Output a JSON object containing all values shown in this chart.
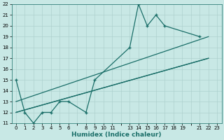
{
  "xlabel": "Humidex (Indice chaleur)",
  "bg_color": "#c8e8e5",
  "grid_color": "#a8ccca",
  "line_color": "#1a6e68",
  "spine_color": "#1a6e68",
  "xlim": [
    -0.5,
    23.5
  ],
  "ylim": [
    11,
    22
  ],
  "yticks": [
    11,
    12,
    13,
    14,
    15,
    16,
    17,
    18,
    19,
    20,
    21,
    22
  ],
  "xtick_vals": [
    0,
    1,
    2,
    3,
    4,
    5,
    6,
    8,
    9,
    10,
    11,
    13,
    14,
    15,
    16,
    17,
    18,
    19,
    21,
    22,
    23
  ],
  "line1_x": [
    0,
    1,
    2,
    3,
    4,
    5,
    6,
    8,
    9,
    13,
    14,
    15,
    16,
    17,
    21
  ],
  "line1_y": [
    15,
    12,
    11,
    12,
    12,
    13,
    13,
    12,
    15,
    18,
    22,
    20,
    21,
    20,
    19
  ],
  "line2_x": [
    0,
    22
  ],
  "line2_y": [
    12,
    17
  ],
  "line3_x": [
    0,
    22
  ],
  "line3_y": [
    13,
    19
  ],
  "line4_x": [
    0,
    22
  ],
  "line4_y": [
    12,
    17
  ],
  "xlabel_fontsize": 6.5,
  "tick_labelsize": 5.0
}
